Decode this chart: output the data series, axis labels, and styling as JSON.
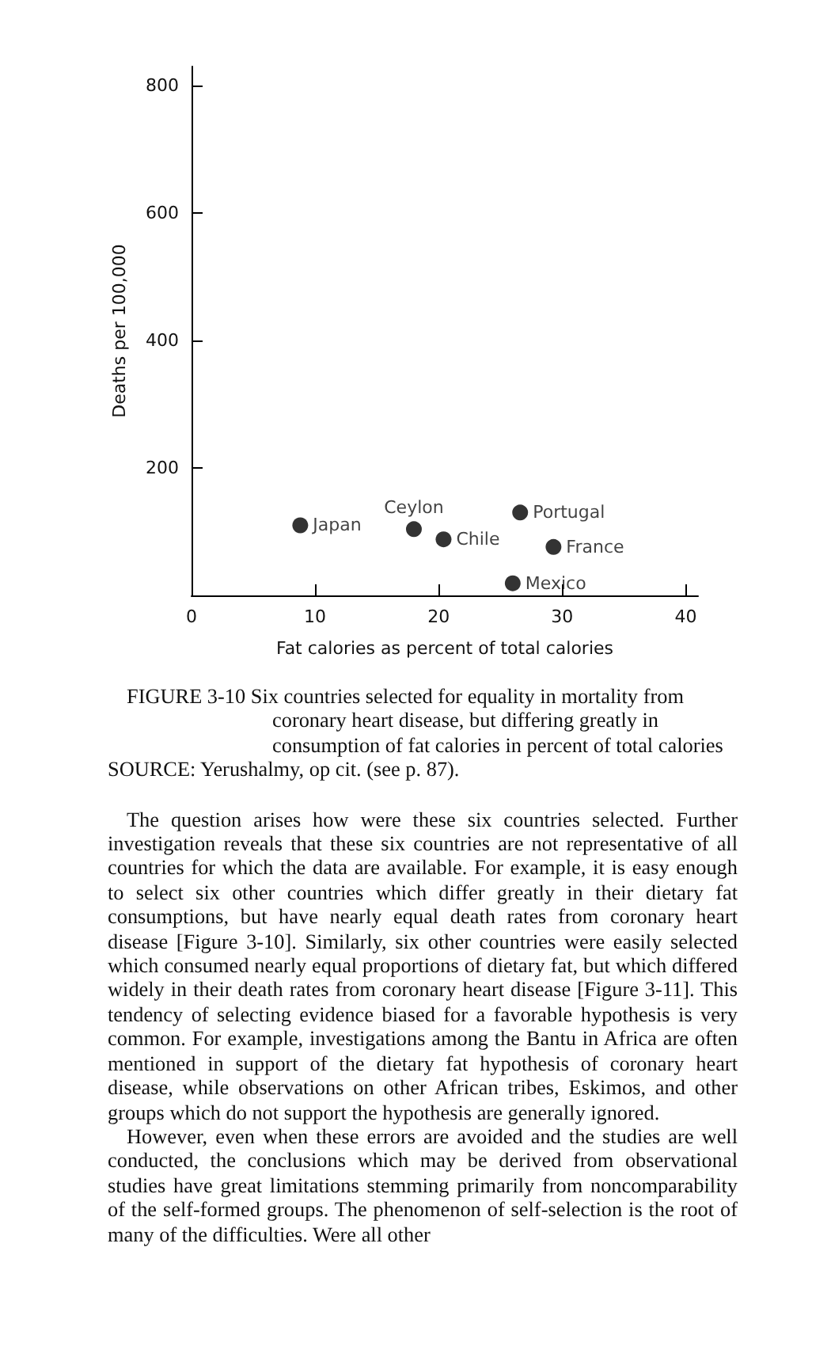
{
  "chart_data": {
    "type": "scatter",
    "xlabel": "Fat calories as percent of total calories",
    "ylabel": "Deaths per 100,000",
    "x": [
      8.8,
      18.0,
      20.4,
      26.6,
      29.3,
      26.0
    ],
    "values": [
      110,
      104,
      88,
      130,
      76,
      19
    ],
    "color": "#000000",
    "marker": "circle",
    "xlim": [
      0,
      41
    ],
    "xticks": [
      0,
      10,
      20,
      30,
      40
    ],
    "ylim": [
      0,
      830
    ],
    "yticks": [
      200,
      400,
      600,
      800
    ],
    "annotations": [
      {
        "text": "Japan",
        "x": 8.8,
        "y": 110
      },
      {
        "text": "Ceylon",
        "x": 18.0,
        "y": 104
      },
      {
        "text": "Chile",
        "x": 20.4,
        "y": 88
      },
      {
        "text": "Portugal",
        "x": 26.6,
        "y": 130
      },
      {
        "text": "France",
        "x": 29.3,
        "y": 76
      },
      {
        "text": "Mexico",
        "x": 26.0,
        "y": 19
      },
      "FIGURE 3-10 Six countries selected for equality in mortality from coronary heart disease, but differing greatly in consumption of fat calories in percent of total calories",
      "SOURCE: Yerushalmy, op cit. (see p. 87).",
      "The question arises how were these six countries selected. Further investigation reveals that these six countries are not representative of all countries for which the data are available. For example, it is easy enough to select six other countries which differ greatly in their dietary fat consumptions, but have nearly equal death rates from coronary heart disease [Figure 3-10]. Similarly, six other countries were easily selected which consumed nearly equal proportions of dietary fat, but which differed widely in their death rates from coronary heart disease [Figure 3-11]. This tendency of selecting evidence biased for a favorable hypothesis is very common. For example, investigations among the Bantu in Africa are often mentioned in support of the dietary fat hypothesis of coronary heart disease, while observations on other African tribes, Eskimos, and other groups which do not support the hypothesis are generally ignored.",
      "However, even when these errors are avoided and the studies are well conducted, the conclusions which may be derived from observational studies have great limitations stemming primarily from noncomparability of the self-formed groups. The phenomenon of self-selection is the root of many of the difficulties. Were all other"
    ]
  }
}
